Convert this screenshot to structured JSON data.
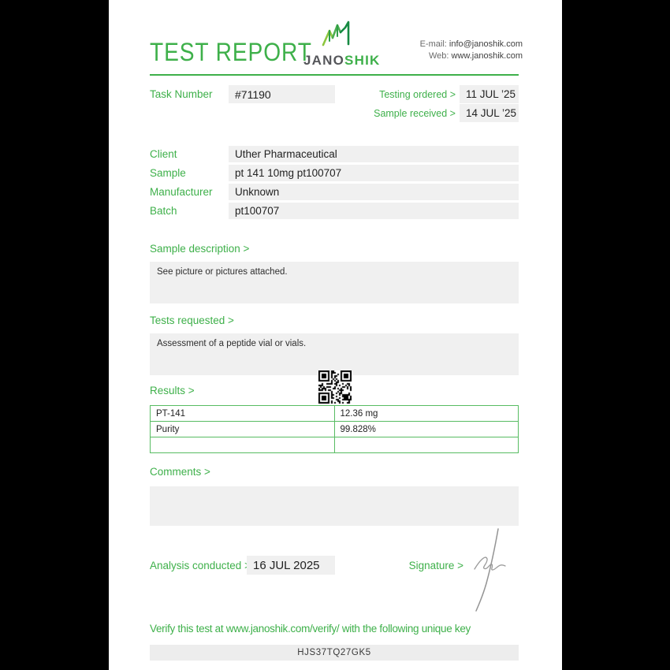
{
  "header": {
    "title": "TEST REPORT",
    "logo": {
      "jano": "JANO",
      "shik": "SHIK"
    },
    "contact": {
      "email_label": "E-mail:",
      "email": "info@janoshik.com",
      "web_label": "Web:",
      "web": "www.janoshik.com"
    }
  },
  "task": {
    "label": "Task Number",
    "number": "#71190",
    "testing_ordered_label": "Testing ordered  >",
    "testing_ordered_date": "11 JUL ’25",
    "sample_received_label": "Sample received >",
    "sample_received_date": "14 JUL ’25"
  },
  "info_rows": [
    {
      "label": "Client",
      "value": "Uther Pharmaceutical"
    },
    {
      "label": "Sample",
      "value": "pt 141 10mg pt100707"
    },
    {
      "label": "Manufacturer",
      "value": "Unknown"
    },
    {
      "label": "Batch",
      "value": "pt100707"
    }
  ],
  "sections": {
    "sample_description": {
      "label": "Sample description >",
      "text": "See picture or pictures attached."
    },
    "tests_requested": {
      "label": "Tests requested >",
      "text": "Assessment of a peptide vial or vials."
    },
    "results": {
      "label": "Results >",
      "rows": [
        {
          "name": "PT-141",
          "value": "12.36 mg"
        },
        {
          "name": "Purity",
          "value": "99.828%"
        },
        {
          "name": "",
          "value": ""
        }
      ]
    },
    "comments": {
      "label": "Comments >",
      "text": ""
    }
  },
  "footer": {
    "analysis_label": "Analysis conducted >",
    "analysis_date": "16 JUL 2025",
    "signature_label": "Signature >",
    "verify_text": "Verify this test at www.janoshik.com/verify/ with the following unique key",
    "unique_key": "HJS37TQ27GK5"
  },
  "colors": {
    "accent_green": "#3eb04a",
    "table_border_green": "#58bc62",
    "box_gray": "#f0f0f0",
    "text_dark": "#222222",
    "logo_gray": "#55565a"
  }
}
